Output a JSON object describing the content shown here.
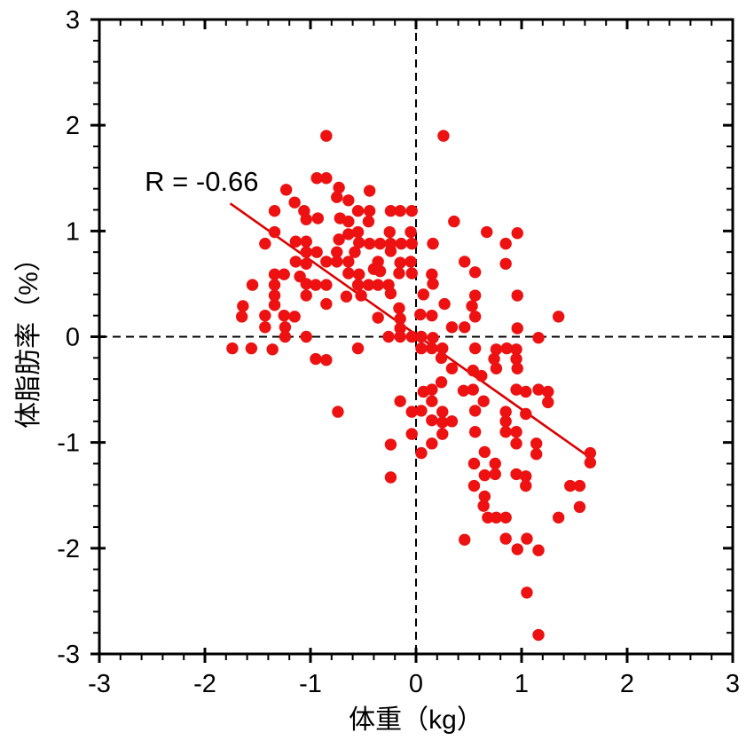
{
  "chart_data": {
    "type": "scatter",
    "title": "",
    "xlabel": "体重（kg）",
    "ylabel": "体脂肪率（%）",
    "xlim": [
      -3,
      3
    ],
    "ylim": [
      -3,
      3
    ],
    "x_ticks": [
      -3,
      -2,
      -1,
      0,
      1,
      2,
      3
    ],
    "y_ticks": [
      -3,
      -2,
      -1,
      0,
      1,
      2,
      3
    ],
    "minor_tick_step": 0.2,
    "grid": false,
    "legend": "none",
    "axis_color": "#000000",
    "reference_lines": {
      "vertical_x": 0,
      "horizontal_y": 0,
      "style": "dashed",
      "color": "#000000"
    },
    "annotation": {
      "text": "R = -0.66",
      "x": -2.57,
      "y": 1.38
    },
    "trend_line": {
      "x1": -1.76,
      "y1": 1.26,
      "x2": 1.63,
      "y2": -1.13,
      "color": "#dd0000"
    },
    "marker": {
      "shape": "circle",
      "color": "#ee1111",
      "radius_px": 6.7
    },
    "points": [
      [
        -0.85,
        1.9
      ],
      [
        0.26,
        1.9
      ],
      [
        -0.94,
        1.5
      ],
      [
        -0.85,
        1.5
      ],
      [
        -0.73,
        1.41
      ],
      [
        -1.23,
        1.39
      ],
      [
        -0.44,
        1.38
      ],
      [
        -0.75,
        1.32
      ],
      [
        -0.64,
        1.29
      ],
      [
        -1.15,
        1.27
      ],
      [
        -1.34,
        1.19
      ],
      [
        -1.06,
        1.19
      ],
      [
        -0.55,
        1.19
      ],
      [
        -0.44,
        1.19
      ],
      [
        -0.24,
        1.19
      ],
      [
        -0.15,
        1.19
      ],
      [
        -0.04,
        1.19
      ],
      [
        -0.72,
        1.12
      ],
      [
        -0.93,
        1.12
      ],
      [
        -1.04,
        1.11
      ],
      [
        -0.64,
        1.09
      ],
      [
        -0.45,
        1.09
      ],
      [
        0.36,
        1.09
      ],
      [
        -1.34,
        0.99
      ],
      [
        -0.55,
        0.99
      ],
      [
        -0.25,
        0.99
      ],
      [
        -0.05,
        0.99
      ],
      [
        0.67,
        0.99
      ],
      [
        0.96,
        0.98
      ],
      [
        -0.64,
        0.97
      ],
      [
        -0.73,
        0.92
      ],
      [
        -1.14,
        0.9
      ],
      [
        -1.04,
        0.9
      ],
      [
        -1.43,
        0.88
      ],
      [
        -0.54,
        0.89
      ],
      [
        -0.44,
        0.88
      ],
      [
        -0.34,
        0.88
      ],
      [
        -0.24,
        0.88
      ],
      [
        -0.14,
        0.88
      ],
      [
        -0.04,
        0.88
      ],
      [
        0.16,
        0.88
      ],
      [
        0.85,
        0.88
      ],
      [
        -1.04,
        0.8
      ],
      [
        -0.94,
        0.8
      ],
      [
        -0.75,
        0.8
      ],
      [
        -0.58,
        0.8
      ],
      [
        -0.24,
        0.81
      ],
      [
        -1.14,
        0.71
      ],
      [
        -0.85,
        0.71
      ],
      [
        -0.75,
        0.71
      ],
      [
        -0.64,
        0.71
      ],
      [
        -0.36,
        0.71
      ],
      [
        -0.15,
        0.7
      ],
      [
        -0.05,
        0.71
      ],
      [
        0.46,
        0.71
      ],
      [
        -1.04,
        0.69
      ],
      [
        0.85,
        0.69
      ],
      [
        -0.4,
        0.64
      ],
      [
        -0.34,
        0.62
      ],
      [
        0.56,
        0.61
      ],
      [
        -0.64,
        0.6
      ],
      [
        -0.54,
        0.59
      ],
      [
        -1.34,
        0.59
      ],
      [
        -1.25,
        0.59
      ],
      [
        -0.16,
        0.6
      ],
      [
        -0.04,
        0.6
      ],
      [
        0.15,
        0.59
      ],
      [
        -1.1,
        0.57
      ],
      [
        -1.04,
        0.5
      ],
      [
        0.16,
        0.5
      ],
      [
        -1.55,
        0.49
      ],
      [
        -1.34,
        0.49
      ],
      [
        -0.95,
        0.49
      ],
      [
        -0.85,
        0.49
      ],
      [
        -0.55,
        0.49
      ],
      [
        -0.45,
        0.49
      ],
      [
        -0.36,
        0.49
      ],
      [
        -0.26,
        0.49
      ],
      [
        -0.24,
        0.41
      ],
      [
        0.07,
        0.4
      ],
      [
        -1.34,
        0.39
      ],
      [
        -1.04,
        0.39
      ],
      [
        -0.52,
        0.39
      ],
      [
        -0.66,
        0.38
      ],
      [
        0.56,
        0.39
      ],
      [
        0.96,
        0.39
      ],
      [
        -1.64,
        0.29
      ],
      [
        -1.34,
        0.3
      ],
      [
        -0.85,
        0.31
      ],
      [
        0.27,
        0.31
      ],
      [
        0.53,
        0.29
      ],
      [
        -0.16,
        0.27
      ],
      [
        -1.65,
        0.19
      ],
      [
        -1.43,
        0.2
      ],
      [
        -1.25,
        0.2
      ],
      [
        -1.15,
        0.19
      ],
      [
        -0.36,
        0.18
      ],
      [
        -0.15,
        0.17
      ],
      [
        0.04,
        0.21
      ],
      [
        0.15,
        0.2
      ],
      [
        0.56,
        0.19
      ],
      [
        1.35,
        0.19
      ],
      [
        -1.43,
        0.09
      ],
      [
        -1.24,
        0.09
      ],
      [
        -0.15,
        0.08
      ],
      [
        0.34,
        0.09
      ],
      [
        0.46,
        0.09
      ],
      [
        0.96,
        0.08
      ],
      [
        -1.24,
        0.0
      ],
      [
        -1.04,
        0.0
      ],
      [
        -0.26,
        0.0
      ],
      [
        -0.15,
        0.0
      ],
      [
        -0.04,
        0.0
      ],
      [
        0.05,
        0.0
      ],
      [
        0.16,
        -0.01
      ],
      [
        1.16,
        -0.01
      ],
      [
        -1.74,
        -0.11
      ],
      [
        -1.56,
        -0.11
      ],
      [
        -1.36,
        -0.12
      ],
      [
        -0.55,
        -0.11
      ],
      [
        0.05,
        -0.11
      ],
      [
        0.15,
        -0.11
      ],
      [
        0.25,
        -0.11
      ],
      [
        0.56,
        -0.11
      ],
      [
        0.76,
        -0.12
      ],
      [
        0.86,
        -0.11
      ],
      [
        0.95,
        -0.12
      ],
      [
        -0.95,
        -0.21
      ],
      [
        -0.85,
        -0.22
      ],
      [
        0.24,
        -0.2
      ],
      [
        0.74,
        -0.21
      ],
      [
        0.95,
        -0.21
      ],
      [
        0.34,
        -0.3
      ],
      [
        0.54,
        -0.32
      ],
      [
        0.76,
        -0.3
      ],
      [
        0.96,
        -0.3
      ],
      [
        0.62,
        -0.37
      ],
      [
        0.24,
        -0.43
      ],
      [
        0.07,
        -0.52
      ],
      [
        0.15,
        -0.5
      ],
      [
        0.45,
        -0.51
      ],
      [
        0.54,
        -0.5
      ],
      [
        0.95,
        -0.5
      ],
      [
        1.04,
        -0.52
      ],
      [
        1.16,
        -0.5
      ],
      [
        1.25,
        -0.52
      ],
      [
        -0.15,
        -0.61
      ],
      [
        0.15,
        -0.61
      ],
      [
        0.64,
        -0.61
      ],
      [
        1.25,
        -0.62
      ],
      [
        -0.74,
        -0.71
      ],
      [
        -0.04,
        -0.71
      ],
      [
        0.05,
        -0.7
      ],
      [
        0.25,
        -0.71
      ],
      [
        0.56,
        -0.7
      ],
      [
        0.85,
        -0.71
      ],
      [
        1.04,
        -0.73
      ],
      [
        0.15,
        -0.79
      ],
      [
        0.25,
        -0.81
      ],
      [
        0.34,
        -0.8
      ],
      [
        0.85,
        -0.8
      ],
      [
        -0.04,
        -0.92
      ],
      [
        0.25,
        -0.92
      ],
      [
        0.56,
        -0.9
      ],
      [
        0.85,
        -0.9
      ],
      [
        0.95,
        -0.9
      ],
      [
        -0.24,
        -1.02
      ],
      [
        0.15,
        -1.01
      ],
      [
        0.95,
        -1.01
      ],
      [
        1.14,
        -1.01
      ],
      [
        0.05,
        -1.1
      ],
      [
        0.65,
        -1.09
      ],
      [
        1.14,
        -1.11
      ],
      [
        1.65,
        -1.1
      ],
      [
        0.55,
        -1.2
      ],
      [
        0.75,
        -1.2
      ],
      [
        1.65,
        -1.19
      ],
      [
        -0.24,
        -1.33
      ],
      [
        0.65,
        -1.31
      ],
      [
        0.75,
        -1.3
      ],
      [
        0.95,
        -1.3
      ],
      [
        1.04,
        -1.32
      ],
      [
        0.55,
        -1.41
      ],
      [
        1.04,
        -1.41
      ],
      [
        1.46,
        -1.41
      ],
      [
        1.55,
        -1.41
      ],
      [
        0.65,
        -1.51
      ],
      [
        0.64,
        -1.6
      ],
      [
        1.55,
        -1.61
      ],
      [
        0.68,
        -1.71
      ],
      [
        0.76,
        -1.71
      ],
      [
        0.85,
        -1.71
      ],
      [
        1.35,
        -1.71
      ],
      [
        0.46,
        -1.92
      ],
      [
        0.85,
        -1.91
      ],
      [
        1.05,
        -1.91
      ],
      [
        0.96,
        -2.01
      ],
      [
        1.16,
        -2.02
      ],
      [
        1.05,
        -2.42
      ],
      [
        1.16,
        -2.82
      ]
    ]
  }
}
